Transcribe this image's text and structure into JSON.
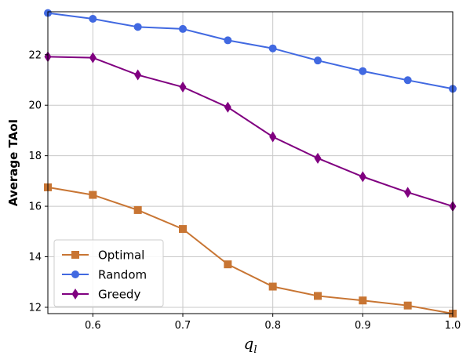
{
  "chart_data": {
    "type": "line",
    "x": [
      0.55,
      0.6,
      0.65,
      0.7,
      0.75,
      0.8,
      0.85,
      0.9,
      0.95,
      1.0
    ],
    "xlabel": "q_l",
    "xlabel_main": "q",
    "xlabel_sub": "l",
    "ylabel": "Average TAoI",
    "xlim": [
      0.55,
      1.0
    ],
    "ylim": [
      11.75,
      23.7
    ],
    "xticks": [
      0.6,
      0.7,
      0.8,
      0.9,
      1.0
    ],
    "xtick_labels": [
      "0.6",
      "0.7",
      "0.8",
      "0.9",
      "1.0"
    ],
    "yticks": [
      12,
      14,
      16,
      18,
      20,
      22
    ],
    "ytick_labels": [
      "12",
      "14",
      "16",
      "18",
      "20",
      "22"
    ],
    "grid": true,
    "legend_position": "lower-left",
    "series": [
      {
        "name": "Optimal",
        "color": "#c87533",
        "marker": "square",
        "values": [
          16.75,
          16.45,
          15.85,
          15.1,
          13.7,
          12.82,
          12.45,
          12.27,
          12.07,
          11.75
        ]
      },
      {
        "name": "Random",
        "color": "#4169e1",
        "marker": "circle",
        "values": [
          23.65,
          23.42,
          23.1,
          23.02,
          22.57,
          22.25,
          21.77,
          21.35,
          20.99,
          20.65
        ]
      },
      {
        "name": "Greedy",
        "color": "#800080",
        "marker": "diamond",
        "values": [
          21.92,
          21.88,
          21.2,
          20.72,
          19.92,
          18.75,
          17.9,
          17.17,
          16.55,
          16.0
        ]
      }
    ]
  }
}
